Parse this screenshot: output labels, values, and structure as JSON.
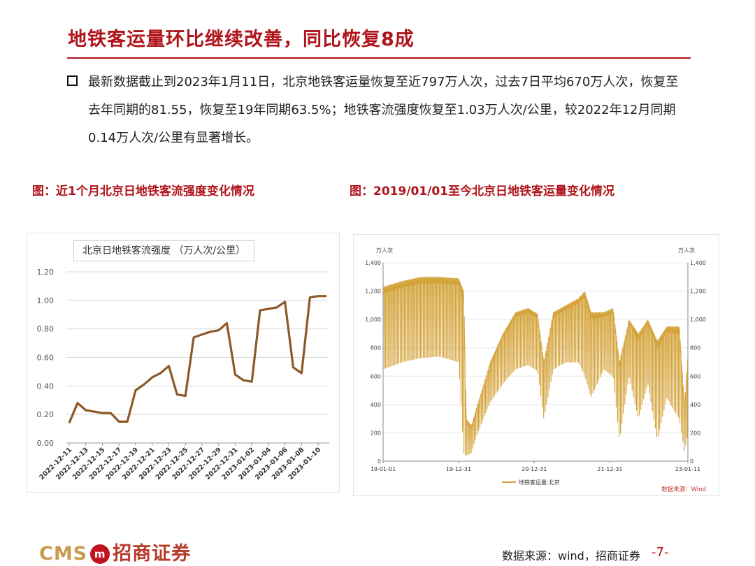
{
  "header": {
    "title": "地铁客运量环比继续改善，同比恢复8成"
  },
  "bullet": {
    "text": "最新数据截止到2023年1月11日，北京地铁客运量恢复至近797万人次，过去7日平均670万人次，恢复至去年同期的81.55，恢复至19年同期63.5%；地铁客流强度恢复至1.03万人次/公里，较2022年12月同期0.14万人次/公里有显著增长。"
  },
  "figures": {
    "left_title": "图：近1个月北京日地铁客流强度变化情况",
    "right_title": "图：2019/01/01至今北京日地铁客运量变化情况"
  },
  "footer": {
    "logo_text": "CMS",
    "logo_mark": "m",
    "logo_cn": "招商证券",
    "source": "数据来源：wind，招商证券",
    "page": "-7-"
  },
  "colors": {
    "accent": "#b0141b",
    "line_brown": "#8b5a2b",
    "line_gold": "#d4a33a"
  },
  "chart_data": [
    {
      "type": "line",
      "title": "北京日地铁客流强度 （万人次/公里）",
      "xlabel": "",
      "ylabel": "",
      "ylim": [
        0,
        1.2
      ],
      "yticks": [
        "0.00",
        "0.20",
        "0.40",
        "0.60",
        "0.80",
        "1.00",
        "1.20"
      ],
      "grid": true,
      "x": [
        "2022-12-11",
        "2022-12-12",
        "2022-12-13",
        "2022-12-14",
        "2022-12-15",
        "2022-12-16",
        "2022-12-17",
        "2022-12-18",
        "2022-12-19",
        "2022-12-20",
        "2022-12-21",
        "2022-12-22",
        "2022-12-23",
        "2022-12-24",
        "2022-12-25",
        "2022-12-26",
        "2022-12-27",
        "2022-12-28",
        "2022-12-29",
        "2022-12-30",
        "2022-12-31",
        "2023-01-01",
        "2023-01-02",
        "2023-01-03",
        "2023-01-04",
        "2023-01-05",
        "2023-01-06",
        "2023-01-07",
        "2023-01-08",
        "2023-01-09",
        "2023-01-10",
        "2023-01-11"
      ],
      "xticks": [
        "2022-12-11",
        "2022-12-13",
        "2022-12-15",
        "2022-12-17",
        "2022-12-19",
        "2022-12-21",
        "2022-12-23",
        "2022-12-25",
        "2022-12-27",
        "2022-12-29",
        "2022-12-31",
        "2023-01-02",
        "2023-01-04",
        "2023-01-06",
        "2023-01-08",
        "2023-01-10"
      ],
      "series": [
        {
          "values": [
            0.14,
            0.28,
            0.23,
            0.22,
            0.21,
            0.21,
            0.15,
            0.15,
            0.37,
            0.41,
            0.46,
            0.49,
            0.54,
            0.34,
            0.33,
            0.74,
            0.76,
            0.78,
            0.79,
            0.84,
            0.48,
            0.44,
            0.43,
            0.93,
            0.94,
            0.95,
            0.99,
            0.53,
            0.49,
            1.02,
            1.03,
            1.03
          ]
        }
      ]
    },
    {
      "type": "line",
      "title": "",
      "ylabel_left": "万人次",
      "ylabel_right": "万人次",
      "ylim": [
        0,
        1400
      ],
      "yticks": [
        "0",
        "200",
        "400",
        "600",
        "800",
        "1,000",
        "1,200",
        "1,400"
      ],
      "xticks": [
        "19-01-01",
        "19-12-31",
        "20-12-31",
        "21-12-31",
        "23-01-11"
      ],
      "x_range": [
        "2019-01-01",
        "2023-01-11"
      ],
      "grid": true,
      "legend": "bottom-left",
      "annotation": "数据来源：Wind",
      "series": [
        {
          "name": "地铁客运量:北京",
          "color": "#d4a33a",
          "note": "daily series with strong weekday/weekend oscillation; anchor envelope (month index from 2019-01, daily high, daily low)",
          "anchors": [
            [
              0,
              1230,
              650
            ],
            [
              3,
              1270,
              700
            ],
            [
              6,
              1300,
              730
            ],
            [
              9,
              1300,
              740
            ],
            [
              12,
              1290,
              700
            ],
            [
              12.8,
              1200,
              60
            ],
            [
              13.2,
              300,
              40
            ],
            [
              14,
              250,
              60
            ],
            [
              15,
              400,
              200
            ],
            [
              17,
              700,
              420
            ],
            [
              19,
              900,
              550
            ],
            [
              21,
              1050,
              650
            ],
            [
              23,
              1080,
              680
            ],
            [
              24.5,
              1040,
              640
            ],
            [
              25.5,
              700,
              300
            ],
            [
              27,
              1050,
              650
            ],
            [
              29,
              1100,
              700
            ],
            [
              31,
              1150,
              700
            ],
            [
              32,
              1200,
              600
            ],
            [
              33,
              1050,
              450
            ],
            [
              35,
              1050,
              650
            ],
            [
              36.5,
              1080,
              600
            ],
            [
              37.5,
              700,
              150
            ],
            [
              39,
              1000,
              600
            ],
            [
              40.5,
              900,
              300
            ],
            [
              42,
              1000,
              550
            ],
            [
              43.5,
              850,
              150
            ],
            [
              45,
              950,
              450
            ],
            [
              47,
              950,
              300
            ],
            [
              47.8,
              400,
              70
            ],
            [
              48.4,
              780,
              200
            ]
          ]
        }
      ]
    }
  ]
}
